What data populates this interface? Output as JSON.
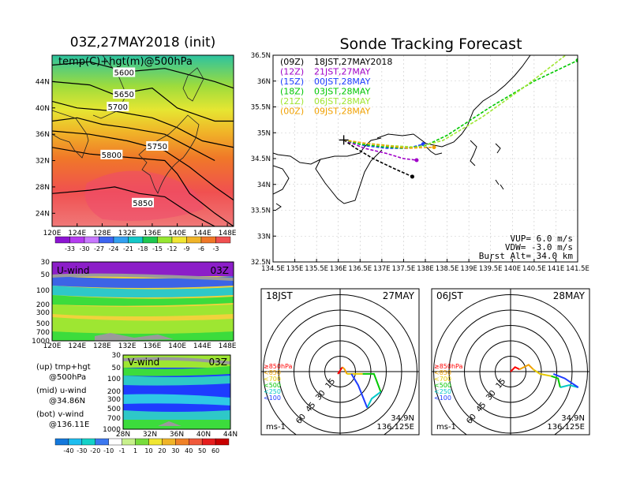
{
  "left_title": "03Z,27MAY2018 (init)",
  "right_title": "Sonde Tracking Forecast",
  "colors": {
    "purple": "#a000c8",
    "blue": "#1e3cff",
    "green": "#00c800",
    "yellowgreen": "#a0e632",
    "orange": "#f0a000",
    "black": "#000000"
  },
  "chart_data": [
    {
      "type": "heatmap",
      "name": "500hPa",
      "panel_label": "temp(C)+hgt(m)@500hPa",
      "x_ticks": [
        "120E",
        "124E",
        "128E",
        "132E",
        "136E",
        "140E",
        "144E",
        "148E"
      ],
      "y_ticks": [
        "24N",
        "28N",
        "32N",
        "36N",
        "40N",
        "44N"
      ],
      "xlim": [
        120,
        149
      ],
      "ylim": [
        22,
        48
      ],
      "contour_labels": [
        {
          "text": "5600",
          "lon": 131.5,
          "lat": 45.3
        },
        {
          "text": "5650",
          "lon": 131.5,
          "lat": 42.0
        },
        {
          "text": "5700",
          "lon": 130.5,
          "lat": 40.1
        },
        {
          "text": "5750",
          "lon": 136.8,
          "lat": 34.1
        },
        {
          "text": "5800",
          "lon": 129.5,
          "lat": 32.8
        },
        {
          "text": "5850",
          "lon": 134.5,
          "lat": 25.5
        }
      ],
      "colorbar": [
        "-33",
        "-30",
        "-27",
        "-24",
        "-21",
        "-18",
        "-15",
        "-12",
        "-9",
        "-6",
        "-3"
      ]
    },
    {
      "type": "heatmap",
      "name": "u-wind",
      "panel_label": "U-wind",
      "time_label": "03Z",
      "x_ticks": [
        "120E",
        "124E",
        "128E",
        "132E",
        "136E",
        "140E",
        "144E",
        "148E"
      ],
      "y_ticks": [
        "30",
        "50",
        "100",
        "200",
        "300",
        "500",
        "700",
        "1000"
      ]
    },
    {
      "type": "heatmap",
      "name": "v-wind",
      "panel_label": "V-wind",
      "time_label": "03Z",
      "x_ticks": [
        "28N",
        "32N",
        "36N",
        "40N",
        "44N"
      ],
      "y_ticks": [
        "30",
        "50",
        "100",
        "200",
        "300",
        "500",
        "700",
        "1000"
      ],
      "colorbar": [
        "-40",
        "-30",
        "-20",
        "-10",
        "-1",
        "1",
        "10",
        "20",
        "30",
        "40",
        "50",
        "60"
      ]
    },
    {
      "type": "line",
      "name": "track-map",
      "x_ticks": [
        "134.5E",
        "135E",
        "135.5E",
        "136E",
        "136.5E",
        "137E",
        "137.5E",
        "138E",
        "138.5E",
        "139E",
        "139.5E",
        "140E",
        "140.5E",
        "141E",
        "141.5E"
      ],
      "y_ticks": [
        "32.5N",
        "33N",
        "33.5N",
        "34N",
        "34.5N",
        "35N",
        "35.5N",
        "36N",
        "36.5N"
      ],
      "xlim": [
        134.5,
        141.5
      ],
      "ylim": [
        32.5,
        36.5
      ],
      "legend": [
        {
          "init": "(09Z)",
          "label": "18JST,27MAY2018",
          "color": "#000000"
        },
        {
          "init": "(12Z)",
          "label": "21JST,27MAY",
          "color": "#a000c8"
        },
        {
          "init": "(15Z)",
          "label": "00JST,28MAY",
          "color": "#1e3cff"
        },
        {
          "init": "(18Z)",
          "label": "03JST,28MAY",
          "color": "#00c800"
        },
        {
          "init": "(21Z)",
          "label": "06JST,28MAY",
          "color": "#a0e632"
        },
        {
          "init": "(00Z)",
          "label": "09JST,28MAY",
          "color": "#f0a000"
        }
      ],
      "series": [
        {
          "color": "#000000",
          "x": [
            136.125,
            136.4,
            136.8,
            137.3,
            137.7
          ],
          "y": [
            34.86,
            34.7,
            34.5,
            34.3,
            34.15
          ]
        },
        {
          "color": "#a000c8",
          "x": [
            136.125,
            136.6,
            137.1,
            137.5,
            137.8
          ],
          "y": [
            34.86,
            34.7,
            34.6,
            34.5,
            34.47
          ]
        },
        {
          "color": "#1e3cff",
          "x": [
            136.125,
            136.6,
            137.1,
            137.6,
            137.95
          ],
          "y": [
            34.86,
            34.75,
            34.7,
            34.7,
            34.78
          ]
        },
        {
          "color": "#00c800",
          "x": [
            136.125,
            136.5,
            137.0,
            137.5,
            138.0,
            138.5,
            139.5,
            140.5,
            141.5
          ],
          "y": [
            34.86,
            34.78,
            34.73,
            34.7,
            34.75,
            34.95,
            35.5,
            36.0,
            36.4
          ]
        },
        {
          "color": "#a0e632",
          "x": [
            136.125,
            136.6,
            137.2,
            137.8,
            138.4,
            139.3,
            140.3,
            141.3,
            141.9
          ],
          "y": [
            34.86,
            34.8,
            34.75,
            34.72,
            34.85,
            35.3,
            35.9,
            36.55,
            37.05
          ]
        },
        {
          "color": "#f0a000",
          "x": [
            136.125,
            136.6,
            137.1,
            137.6,
            138.2
          ],
          "y": [
            34.86,
            34.8,
            34.75,
            34.7,
            34.72
          ]
        }
      ],
      "info_lines": [
        "VUP=  6.0 m/s",
        "VDW= -3.0 m/s",
        "Burst Alt=  34.0 km"
      ]
    },
    {
      "type": "line",
      "name": "hodograph-1",
      "time_label": "18JST",
      "date_label": "27MAY",
      "ring_labels": [
        "15",
        "30",
        "45",
        "60"
      ],
      "loc_lat": "34.9N",
      "loc_lon": "136.125E",
      "unit": "ms-1",
      "pressure_legend": [
        {
          "text": "≥850hPa",
          "color": "#ff0000"
        },
        {
          "text": "<850",
          "color": "#f0a000"
        },
        {
          "text": "<700",
          "color": "#e6c800"
        },
        {
          "text": "<500",
          "color": "#00c800"
        },
        {
          "text": "<250",
          "color": "#00c8c8"
        },
        {
          "text": "<100",
          "color": "#1e3cff"
        }
      ],
      "segments": [
        {
          "color": "#ff0000",
          "u": [
            0,
            -1,
            1
          ],
          "v": [
            0,
            -1,
            2
          ]
        },
        {
          "color": "#f0a000",
          "u": [
            1,
            2,
            3
          ],
          "v": [
            2,
            1,
            -1
          ]
        },
        {
          "color": "#e6c800",
          "u": [
            3,
            6,
            10
          ],
          "v": [
            -1,
            -1,
            -1
          ]
        },
        {
          "color": "#00c800",
          "u": [
            10,
            15,
            18
          ],
          "v": [
            -1,
            -1,
            -9
          ]
        },
        {
          "color": "#00c8c8",
          "u": [
            18,
            14,
            12
          ],
          "v": [
            -9,
            -12,
            -16
          ]
        },
        {
          "color": "#1e3cff",
          "u": [
            12,
            8,
            5
          ],
          "v": [
            -16,
            -6,
            -1
          ]
        }
      ]
    },
    {
      "type": "line",
      "name": "hodograph-2",
      "time_label": "06JST",
      "date_label": "28MAY",
      "ring_labels": [
        "15",
        "30",
        "45",
        "60"
      ],
      "loc_lat": "34.9N",
      "loc_lon": "136.125E",
      "unit": "ms-1",
      "pressure_legend": [
        {
          "text": "≥850hPa",
          "color": "#ff0000"
        },
        {
          "text": "<850",
          "color": "#f0a000"
        },
        {
          "text": "<700",
          "color": "#e6c800"
        },
        {
          "text": "<500",
          "color": "#00c800"
        },
        {
          "text": "<250",
          "color": "#00c8c8"
        },
        {
          "text": "<100",
          "color": "#1e3cff"
        }
      ],
      "segments": [
        {
          "color": "#ff0000",
          "u": [
            0,
            2,
            4
          ],
          "v": [
            0,
            2,
            1
          ]
        },
        {
          "color": "#f0a000",
          "u": [
            4,
            8,
            10
          ],
          "v": [
            1,
            3,
            1
          ]
        },
        {
          "color": "#e6c800",
          "u": [
            10,
            13,
            18
          ],
          "v": [
            1,
            -1,
            -2
          ]
        },
        {
          "color": "#00c800",
          "u": [
            18,
            21,
            22
          ],
          "v": [
            -2,
            -3,
            -7
          ]
        },
        {
          "color": "#00c8c8",
          "u": [
            22,
            26,
            30
          ],
          "v": [
            -7,
            -6,
            -7
          ]
        },
        {
          "color": "#1e3cff",
          "u": [
            30,
            24,
            19
          ],
          "v": [
            -7,
            -3,
            -1
          ]
        }
      ]
    }
  ],
  "notes": [
    {
      "a": "(up) tmp+hgt",
      "b": "@500hPa"
    },
    {
      "a": "(mid) u-wind",
      "b": "@34.86N"
    },
    {
      "a": "(bot) v-wind",
      "b": "@136.11E"
    }
  ]
}
